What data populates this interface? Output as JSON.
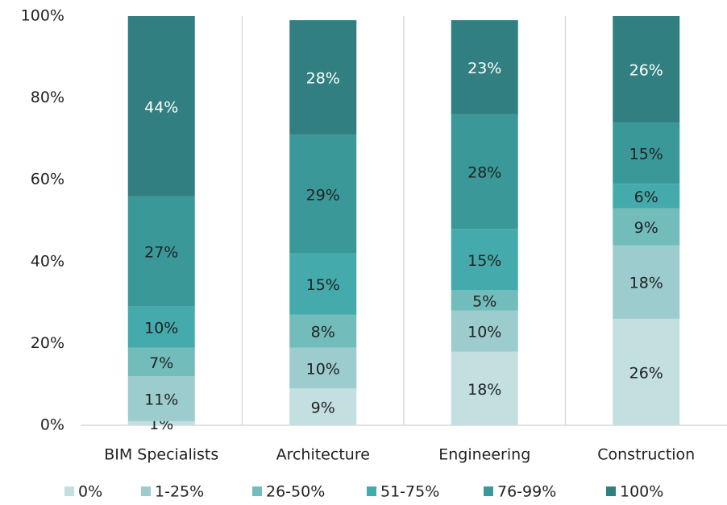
{
  "chart_data": {
    "type": "stacked_bar",
    "categories": [
      "BIM Specialists",
      "Architecture",
      "Engineering",
      "Construction"
    ],
    "series": [
      {
        "name": "0%",
        "color": "#c3dfe0",
        "values": [
          1,
          9,
          18,
          26
        ],
        "value_labels": [
          "1%",
          "9%",
          "18%",
          "26%"
        ]
      },
      {
        "name": "1-25%",
        "color": "#9ccccd",
        "values": [
          11,
          10,
          10,
          18
        ],
        "value_labels": [
          "11%",
          "10%",
          "10%",
          "18%"
        ]
      },
      {
        "name": "26-50%",
        "color": "#72bcbc",
        "values": [
          7,
          8,
          5,
          9
        ],
        "value_labels": [
          "7%",
          "8%",
          "5%",
          "9%"
        ]
      },
      {
        "name": "51-75%",
        "color": "#44aaab",
        "values": [
          10,
          15,
          15,
          6
        ],
        "value_labels": [
          "10%",
          "15%",
          "15%",
          "6%"
        ]
      },
      {
        "name": "76-99%",
        "color": "#3a9899",
        "values": [
          27,
          29,
          28,
          15
        ],
        "value_labels": [
          "27%",
          "29%",
          "28%",
          "15%"
        ]
      },
      {
        "name": "100%",
        "color": "#317f80",
        "values": [
          44,
          28,
          23,
          26
        ],
        "value_labels": [
          "44%",
          "28%",
          "23%",
          "26%"
        ]
      }
    ],
    "ylim": [
      0,
      100
    ],
    "yticks": [
      {
        "value": 0,
        "label": "0%"
      },
      {
        "value": 20,
        "label": "20%"
      },
      {
        "value": 40,
        "label": "40%"
      },
      {
        "value": 60,
        "label": "60%"
      },
      {
        "value": 80,
        "label": "80%"
      },
      {
        "value": 100,
        "label": "100%"
      }
    ],
    "legend": "bottom"
  }
}
